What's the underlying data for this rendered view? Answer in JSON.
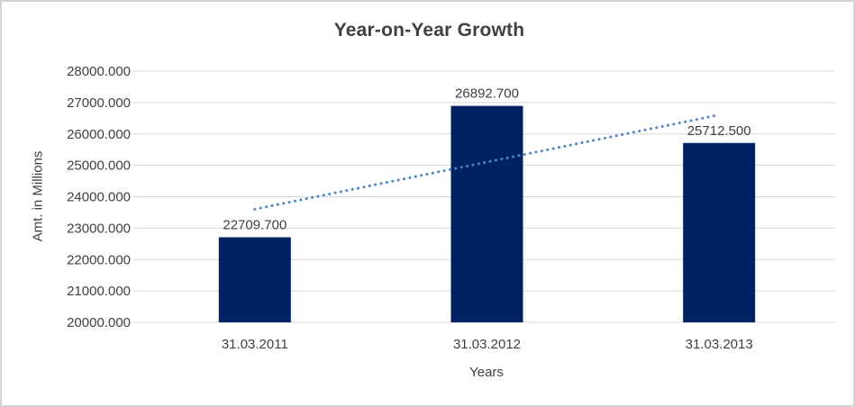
{
  "page": {
    "background": "#ffffff",
    "border_color": "#d3d3d3"
  },
  "chart_data": {
    "type": "bar",
    "title": "Year-on-Year Growth",
    "xlabel": "Years",
    "ylabel": "Amt. in Millions",
    "categories": [
      "31.03.2011",
      "31.03.2012",
      "31.03.2013"
    ],
    "values": [
      22709.7,
      26892.7,
      25712.5
    ],
    "data_labels": [
      "22709.700",
      "26892.700",
      "25712.500"
    ],
    "ylim": [
      20000,
      28000
    ],
    "yticks": [
      20000,
      21000,
      22000,
      23000,
      24000,
      25000,
      26000,
      27000,
      28000
    ],
    "ytick_labels": [
      "20000.000",
      "21000.000",
      "22000.000",
      "23000.000",
      "24000.000",
      "25000.000",
      "26000.000",
      "27000.000",
      "28000.000"
    ],
    "grid": "horizontal",
    "legend": "none",
    "colors": {
      "bar": "#002262",
      "trendline": "#4a86c8",
      "gridline": "#d9d9d9",
      "text": "#404040"
    },
    "trendline": {
      "type": "linear",
      "style": "dotted",
      "start_value": 23603.5,
      "end_value": 26606.4
    }
  }
}
